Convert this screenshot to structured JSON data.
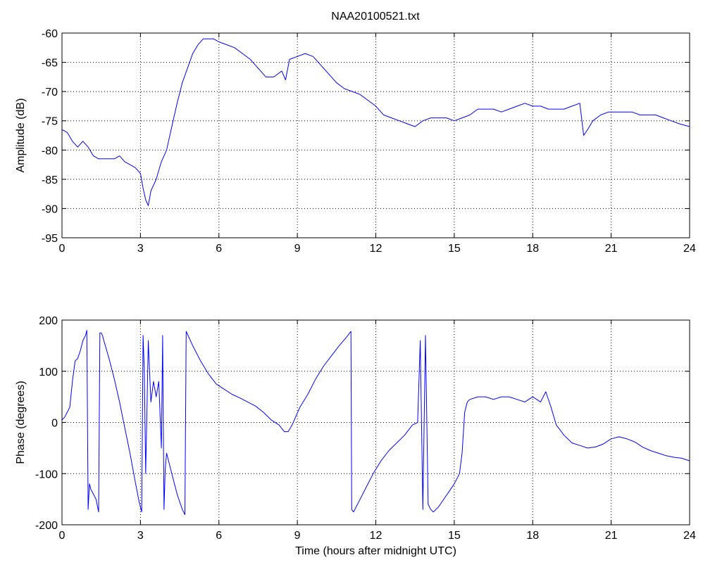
{
  "figure": {
    "title": "NAA20100521.txt",
    "line_color": "#0000ff",
    "background": "#ffffff",
    "grid_color": "#000000"
  },
  "chart_data": [
    {
      "type": "line",
      "title": "NAA20100521.txt",
      "xlabel": "",
      "ylabel": "Amplitude (dB)",
      "xlim": [
        0,
        24
      ],
      "ylim": [
        -95,
        -60
      ],
      "xticks": [
        0,
        3,
        6,
        9,
        12,
        15,
        18,
        21,
        24
      ],
      "yticks": [
        -95,
        -90,
        -85,
        -80,
        -75,
        -70,
        -65,
        -60
      ],
      "grid": true,
      "series": [
        {
          "color": "#0000ff",
          "x": [
            0,
            0.2,
            0.4,
            0.6,
            0.8,
            1.0,
            1.2,
            1.4,
            1.6,
            1.8,
            2.0,
            2.2,
            2.4,
            2.6,
            2.8,
            3.0,
            3.1,
            3.2,
            3.3,
            3.4,
            3.6,
            3.8,
            4.0,
            4.2,
            4.4,
            4.6,
            4.8,
            5.0,
            5.2,
            5.4,
            5.6,
            5.8,
            6.0,
            6.3,
            6.6,
            6.9,
            7.2,
            7.5,
            7.8,
            8.1,
            8.4,
            8.55,
            8.7,
            9.0,
            9.3,
            9.6,
            9.9,
            10.2,
            10.5,
            10.8,
            11.1,
            11.4,
            11.7,
            12.0,
            12.3,
            12.6,
            12.9,
            13.2,
            13.5,
            13.8,
            14.1,
            14.4,
            14.7,
            15.0,
            15.3,
            15.6,
            15.9,
            16.2,
            16.5,
            16.8,
            17.1,
            17.4,
            17.7,
            18.0,
            18.3,
            18.6,
            18.9,
            19.2,
            19.5,
            19.8,
            19.95,
            20.1,
            20.3,
            20.6,
            20.9,
            21.2,
            21.5,
            21.8,
            22.1,
            22.4,
            22.7,
            23.0,
            23.3,
            23.6,
            24.0
          ],
          "y": [
            -76.5,
            -77,
            -78.5,
            -79.5,
            -78.5,
            -79.5,
            -81,
            -81.5,
            -81.5,
            -81.5,
            -81.5,
            -81,
            -82,
            -82.5,
            -83,
            -84,
            -86.5,
            -88.5,
            -89.5,
            -87,
            -85,
            -82,
            -80,
            -76,
            -72,
            -68.5,
            -66,
            -63.5,
            -62,
            -61,
            -61,
            -61,
            -61.5,
            -62,
            -62.5,
            -63.5,
            -64.5,
            -66,
            -67.5,
            -67.5,
            -66.5,
            -68,
            -64.5,
            -64,
            -63.5,
            -64,
            -65.5,
            -67,
            -68.5,
            -69.5,
            -70,
            -70.5,
            -71.5,
            -72.5,
            -74,
            -74.5,
            -75,
            -75.5,
            -76,
            -75,
            -74.5,
            -74.5,
            -74.5,
            -75,
            -74.5,
            -74,
            -73,
            -73,
            -73,
            -73.5,
            -73,
            -72.5,
            -72,
            -72.5,
            -72.5,
            -73,
            -73,
            -73,
            -72.5,
            -72,
            -77.5,
            -76.5,
            -75,
            -74,
            -73.5,
            -73.5,
            -73.5,
            -73.5,
            -74,
            -74,
            -74,
            -74.5,
            -75,
            -75.5,
            -76
          ]
        }
      ]
    },
    {
      "type": "line",
      "title": "",
      "xlabel": "Time (hours after midnight UTC)",
      "ylabel": "Phase (degrees)",
      "xlim": [
        0,
        24
      ],
      "ylim": [
        -200,
        200
      ],
      "xticks": [
        0,
        3,
        6,
        9,
        12,
        15,
        18,
        21,
        24
      ],
      "yticks": [
        -200,
        -100,
        0,
        100,
        200
      ],
      "grid": true,
      "series": [
        {
          "color": "#0000ff",
          "x": [
            0,
            0.1,
            0.2,
            0.3,
            0.4,
            0.5,
            0.6,
            0.7,
            0.8,
            0.9,
            0.95,
            1.0,
            1.05,
            1.1,
            1.2,
            1.3,
            1.4,
            1.45,
            1.5,
            1.55,
            1.6,
            1.8,
            2.0,
            2.2,
            2.4,
            2.6,
            2.8,
            2.95,
            3.05,
            3.1,
            3.15,
            3.2,
            3.25,
            3.3,
            3.4,
            3.5,
            3.6,
            3.7,
            3.8,
            3.85,
            3.9,
            3.95,
            4.0,
            4.2,
            4.4,
            4.6,
            4.7,
            4.75,
            5.0,
            5.3,
            5.6,
            5.9,
            6.2,
            6.5,
            6.8,
            7.1,
            7.4,
            7.7,
            8.0,
            8.3,
            8.5,
            8.65,
            8.8,
            9.1,
            9.4,
            9.7,
            10.0,
            10.3,
            10.6,
            10.9,
            11.05,
            11.08,
            11.15,
            11.3,
            11.6,
            11.9,
            12.2,
            12.5,
            12.8,
            13.1,
            13.4,
            13.6,
            13.7,
            13.8,
            13.9,
            14.0,
            14.1,
            14.2,
            14.4,
            14.6,
            14.8,
            15.0,
            15.2,
            15.3,
            15.4,
            15.5,
            15.6,
            15.9,
            16.2,
            16.5,
            16.8,
            17.1,
            17.4,
            17.7,
            18.0,
            18.3,
            18.5,
            18.7,
            18.9,
            19.2,
            19.5,
            19.8,
            20.1,
            20.4,
            20.7,
            21.0,
            21.3,
            21.6,
            21.9,
            22.2,
            22.5,
            22.8,
            23.1,
            23.4,
            23.7,
            24.0
          ],
          "y": [
            5,
            10,
            20,
            30,
            80,
            120,
            125,
            140,
            160,
            170,
            180,
            -170,
            -120,
            -130,
            -140,
            -150,
            -175,
            175,
            175,
            170,
            160,
            125,
            85,
            40,
            -10,
            -60,
            -115,
            -155,
            -175,
            170,
            100,
            -100,
            30,
            160,
            40,
            80,
            50,
            80,
            -50,
            170,
            -170,
            -90,
            -60,
            -100,
            -140,
            -170,
            -180,
            178,
            150,
            120,
            95,
            75,
            65,
            55,
            48,
            40,
            32,
            20,
            5,
            -5,
            -18,
            -18,
            -5,
            30,
            55,
            85,
            110,
            130,
            150,
            168,
            178,
            -170,
            -175,
            -160,
            -130,
            -100,
            -75,
            -55,
            -40,
            -25,
            -5,
            0,
            160,
            -170,
            170,
            -160,
            -170,
            -175,
            -165,
            -150,
            -135,
            -120,
            -100,
            -60,
            20,
            40,
            45,
            50,
            50,
            45,
            50,
            50,
            45,
            40,
            50,
            40,
            60,
            30,
            -5,
            -25,
            -40,
            -45,
            -50,
            -48,
            -42,
            -32,
            -28,
            -32,
            -38,
            -48,
            -55,
            -60,
            -65,
            -68,
            -70,
            -75
          ]
        }
      ]
    }
  ]
}
